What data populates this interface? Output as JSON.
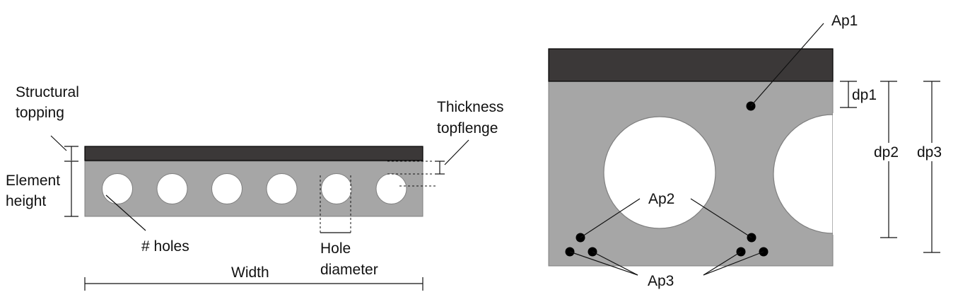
{
  "left_diagram": {
    "labels": {
      "structural_topping_line1": "Structural",
      "structural_topping_line2": "topping",
      "element_height_line1": "Element",
      "element_height_line2": "height",
      "thickness_topflange_line1": "Thickness",
      "thickness_topflange_line2": "topflenge",
      "holes": "# holes",
      "hole_diameter_line1": "Hole",
      "hole_diameter_line2": "diameter",
      "width": "Width"
    },
    "hole_count": 6
  },
  "right_diagram": {
    "labels": {
      "ap1": "Ap1",
      "ap2": "Ap2",
      "ap3": "Ap3",
      "dp1": "dp1",
      "dp2": "dp2",
      "dp3": "dp3"
    }
  },
  "colors": {
    "topping": "#3b3838",
    "slab": "#a6a6a6",
    "hole": "#ffffff",
    "outline": "#595959",
    "strand": "#000000"
  }
}
